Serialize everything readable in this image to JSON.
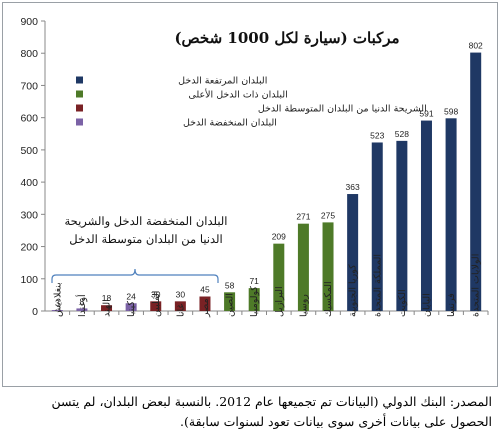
{
  "chart_data": {
    "type": "bar",
    "title": "مركبات (سيارة لكل 1000 شخص)",
    "xlabel": "",
    "ylabel": "",
    "ylim": [
      0,
      900
    ],
    "yticks": [
      0,
      100,
      200,
      300,
      400,
      500,
      600,
      700,
      800,
      900
    ],
    "grid": false,
    "legend_position": "top-left",
    "categories": [
      "بنغلاديش",
      "أوغندا",
      "الهند",
      "كينيا",
      "الفلبين",
      "غانا",
      "مصر",
      "الصين",
      "كولومبيا",
      "البرازيل",
      "روسيا",
      "المكسيك",
      "كوريا الجنوبية",
      "المملكة المتحدة",
      "الكويت",
      "اليابان",
      "فرنسا",
      "الولايات المتحدة"
    ],
    "values": [
      3,
      8,
      18,
      24,
      30,
      30,
      45,
      58,
      71,
      209,
      271,
      275,
      363,
      523,
      528,
      591,
      598,
      802
    ],
    "value_labels": [
      "3",
      "8",
      "18",
      "24",
      "30",
      "30",
      "45",
      "58",
      "71",
      "209",
      "271",
      "275",
      "363",
      "523",
      "528",
      "591",
      "598",
      "802"
    ],
    "groups": [
      "low",
      "low",
      "lower-middle",
      "low",
      "lower-middle",
      "lower-middle",
      "lower-middle",
      "upper-middle",
      "upper-middle",
      "upper-middle",
      "upper-middle",
      "upper-middle",
      "high",
      "high",
      "high",
      "high",
      "high",
      "high"
    ],
    "legend": [
      {
        "key": "high",
        "label": "البلدان المرتفعة الدخل",
        "color": "#1f3864"
      },
      {
        "key": "upper-middle",
        "label": "البلدان ذات الدخل الأعلى",
        "color": "#4e7a28"
      },
      {
        "key": "lower-middle",
        "label": "الشريحة الدنيا من البلدان المتوسطة الدخل",
        "color": "#7a2225"
      },
      {
        "key": "low",
        "label": "البلدان المنخفضة الدخل",
        "color": "#7b62a6"
      }
    ],
    "annotation": {
      "lines": [
        "البلدان المنخفضة الدخل والشريحة",
        "الدنيا من البلدان متوسطة الدخل"
      ],
      "brace_color": "#4f81bd"
    }
  },
  "source_note": "المصدر: البنك الدولي (البيانات تم تجميعها عام 2012. بالنسبة لبعض البلدان، لم يتسن الحصول على بيانات أخرى سوى بيانات تعود لسنوات سابقة)."
}
